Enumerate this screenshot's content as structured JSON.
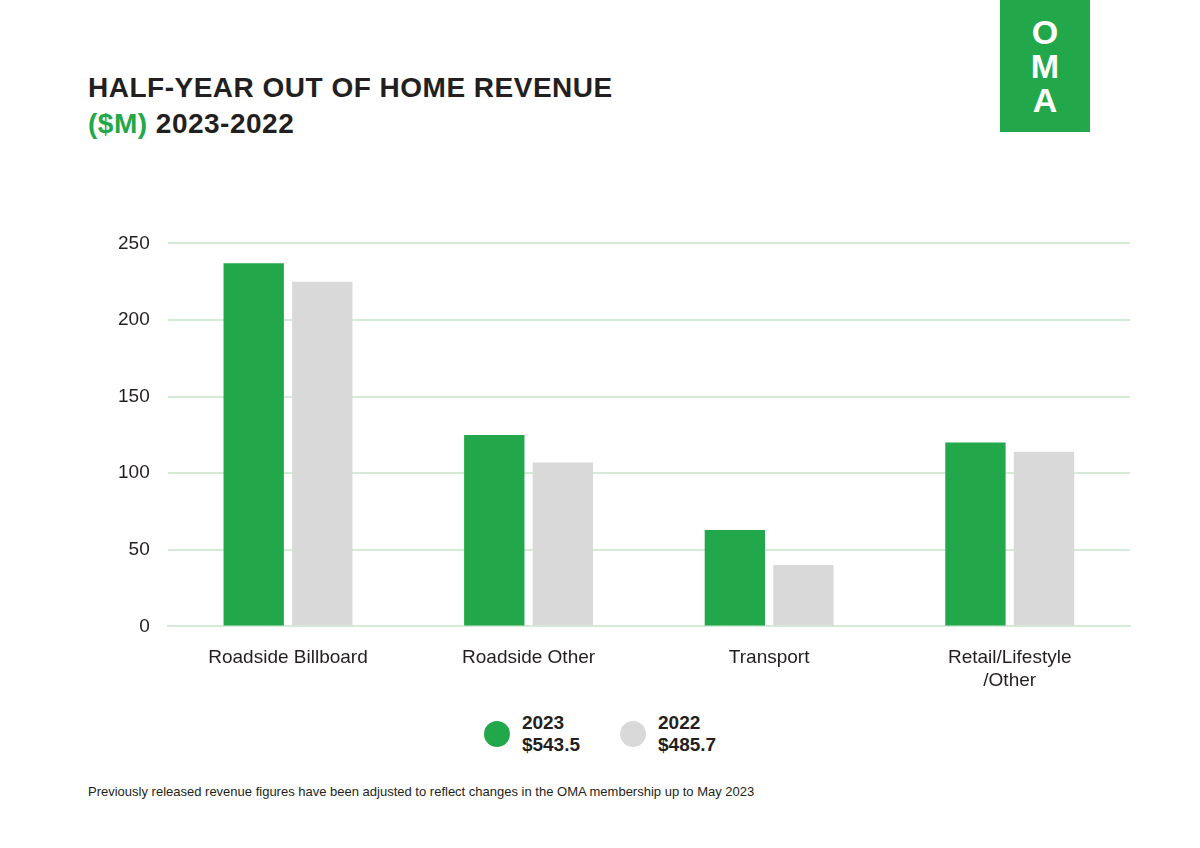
{
  "chart_data": {
    "type": "bar",
    "title": "HALF-YEAR OUT OF HOME REVENUE",
    "subtitle": "($M) 2023-2022",
    "logo": "OMA",
    "note": "Previously released revenue figures have been adjusted to reflect changes in the OMA membership up to May 2023",
    "categories": [
      "Roadside Billboard",
      "Roadside Other",
      "Transport",
      [
        "Retail/Lifestyle",
        "/Other"
      ]
    ],
    "series": [
      {
        "name": "2023",
        "color": "#22a84a",
        "values": [
          237,
          125,
          63,
          120
        ],
        "total": {
          "value": 543.5,
          "label": "$543.5"
        }
      },
      {
        "name": "2022",
        "color": "#d9d9d9",
        "values": [
          225,
          107,
          40,
          114
        ],
        "total": {
          "value": 485.7,
          "label": "$485.7"
        }
      }
    ],
    "ylim": [
      0,
      250
    ],
    "yticks": [
      0,
      50,
      100,
      150,
      200,
      250
    ],
    "grid": true,
    "legend": "bottom"
  }
}
